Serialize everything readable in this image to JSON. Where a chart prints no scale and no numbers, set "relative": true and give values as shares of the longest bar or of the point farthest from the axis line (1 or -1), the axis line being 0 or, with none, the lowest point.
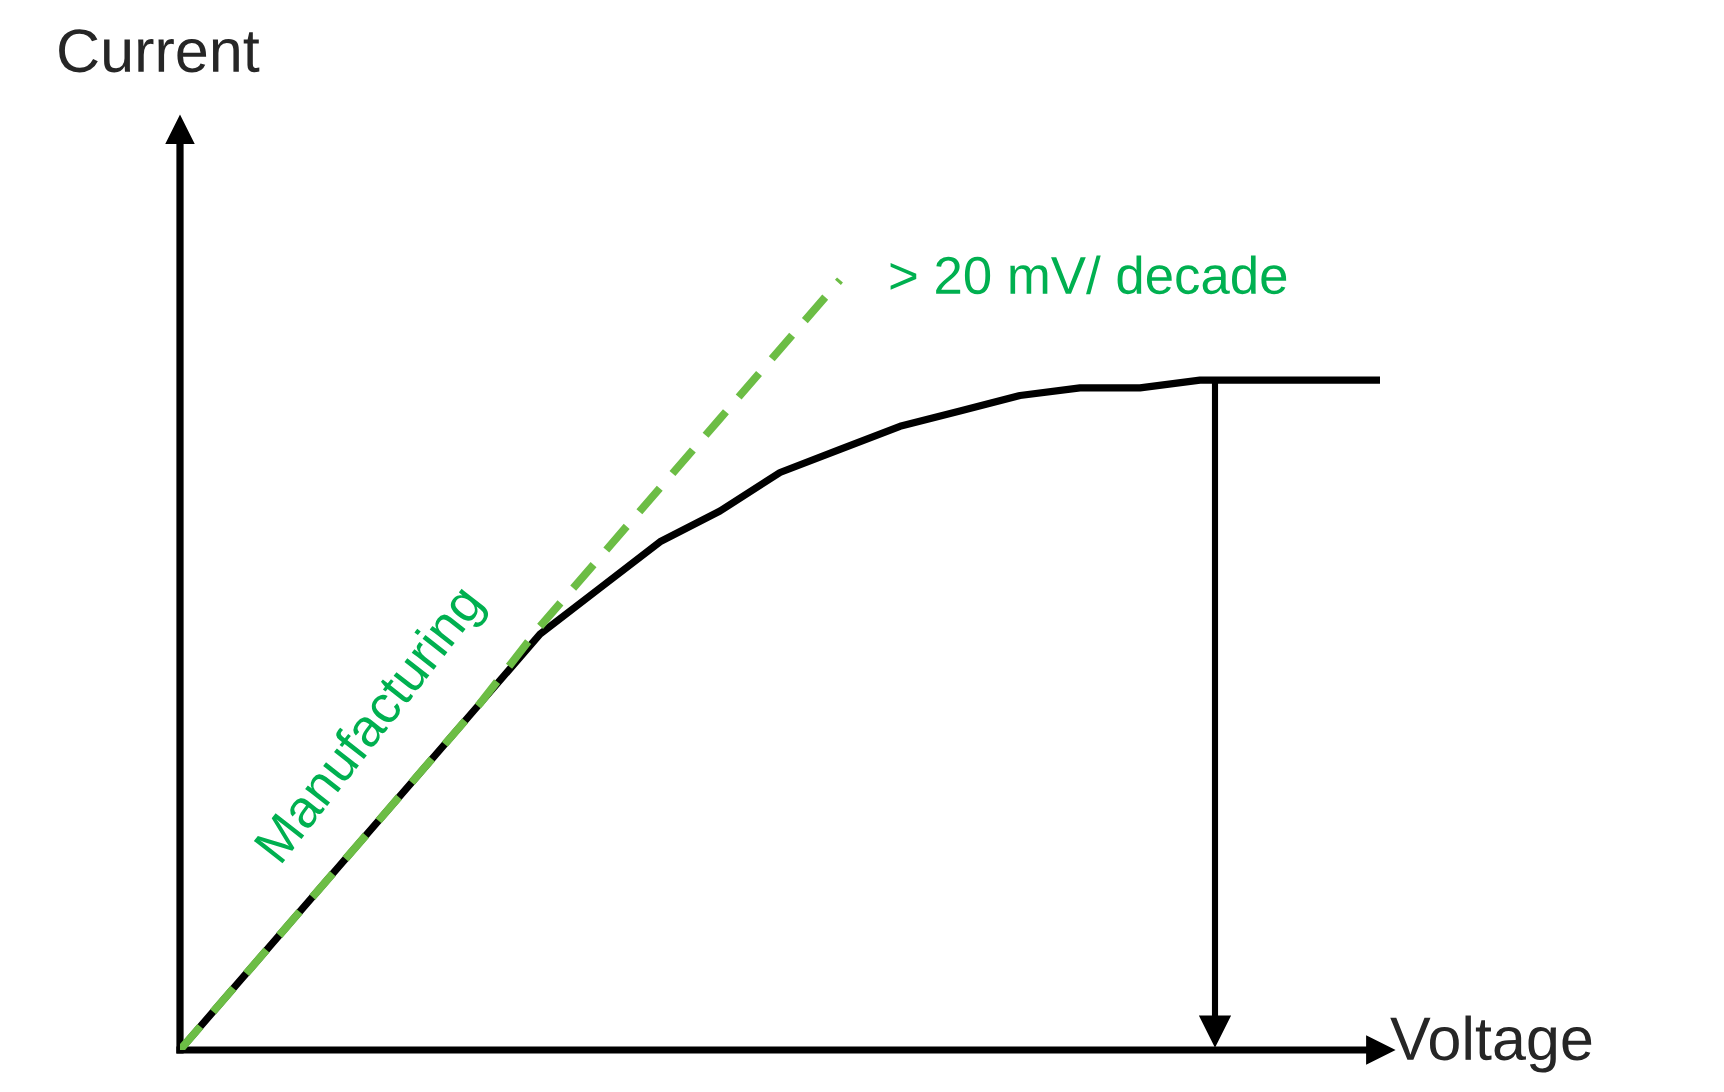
{
  "chart_data": {
    "type": "line",
    "relative": true,
    "xlabel": "Voltage",
    "ylabel": "Current",
    "categories": [
      null,
      null,
      null,
      null,
      null,
      null,
      null,
      null,
      null,
      null,
      null,
      null,
      null,
      null,
      null,
      null,
      null,
      null,
      null,
      null,
      null
    ],
    "series": [
      {
        "color": "#000000",
        "line_style": "solid",
        "values": [
          0,
          0.09,
          0.18,
          0.27,
          0.36,
          0.45,
          0.54,
          0.6,
          0.66,
          0.7,
          0.75,
          0.78,
          0.81,
          0.83,
          0.85,
          0.86,
          0.86,
          0.87,
          0.87,
          0.87,
          0.87
        ]
      },
      {
        "name": "Manufacturing",
        "color": "#6cbd45",
        "line_style": "dashed",
        "values": [
          0,
          0.09,
          0.18,
          0.27,
          0.36,
          0.45,
          0.55,
          0.64,
          0.73,
          0.82,
          0.91,
          1.0,
          null,
          null,
          null,
          null,
          null,
          null,
          null,
          null,
          null
        ]
      }
    ],
    "annotations": [
      "> 20 mV/ decade"
    ]
  }
}
